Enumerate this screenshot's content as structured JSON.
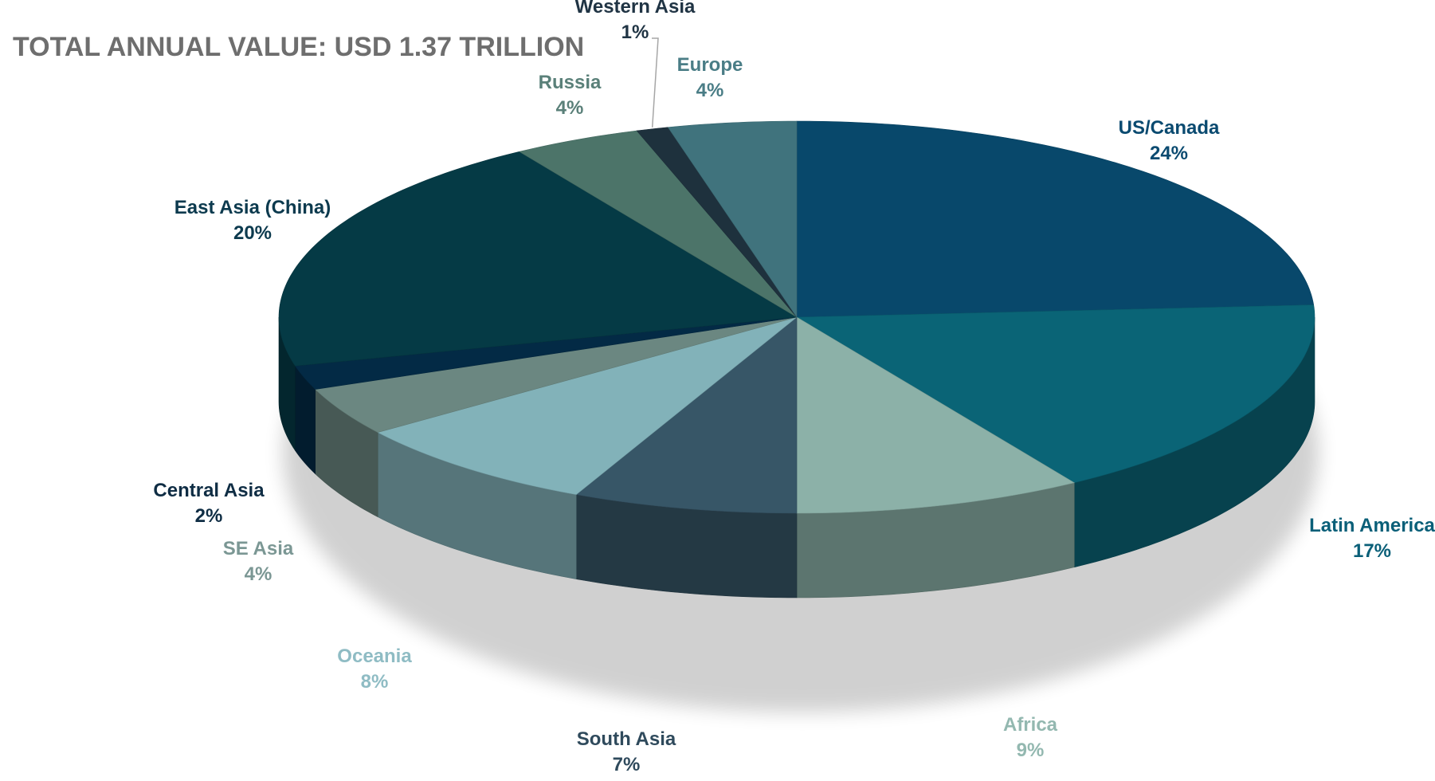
{
  "chart_data": {
    "type": "pie",
    "style": "3d",
    "title": "TOTAL ANNUAL VALUE:  USD 1.37 TRILLION",
    "legend": "none",
    "slices": [
      {
        "label": "US/Canada",
        "value": 24,
        "value_label": "24%",
        "color": "#08486b",
        "label_color": "#0a4a70"
      },
      {
        "label": "Latin America",
        "value": 17,
        "value_label": "17%",
        "color": "#0a6476",
        "label_color": "#0a5f78"
      },
      {
        "label": "Africa",
        "value": 9,
        "value_label": "9%",
        "color": "#8cb1a8",
        "label_color": "#93b8b0"
      },
      {
        "label": "South Asia",
        "value": 7,
        "value_label": "7%",
        "color": "#375667",
        "label_color": "#2f4a5c"
      },
      {
        "label": "Oceania",
        "value": 8,
        "value_label": "8%",
        "color": "#82b2b9",
        "label_color": "#8fbcc4"
      },
      {
        "label": "SE Asia",
        "value": 4,
        "value_label": "4%",
        "color": "#6b8781",
        "label_color": "#7b9794"
      },
      {
        "label": "Central Asia",
        "value": 2,
        "value_label": "2%",
        "color": "#032a45",
        "label_color": "#0f2d44"
      },
      {
        "label": "East Asia (China)",
        "value": 20,
        "value_label": "20%",
        "color": "#053a45",
        "label_color": "#0c3a4e"
      },
      {
        "label": "Russia",
        "value": 4,
        "value_label": "4%",
        "color": "#4c7469",
        "label_color": "#5a8079"
      },
      {
        "label": "Western Asia",
        "value": 1,
        "value_label": "1%",
        "color": "#1e313d",
        "label_color": "#203444"
      },
      {
        "label": "Europe",
        "value": 4,
        "value_label": "4%",
        "color": "#40737d",
        "label_color": "#4a7d86"
      }
    ]
  }
}
